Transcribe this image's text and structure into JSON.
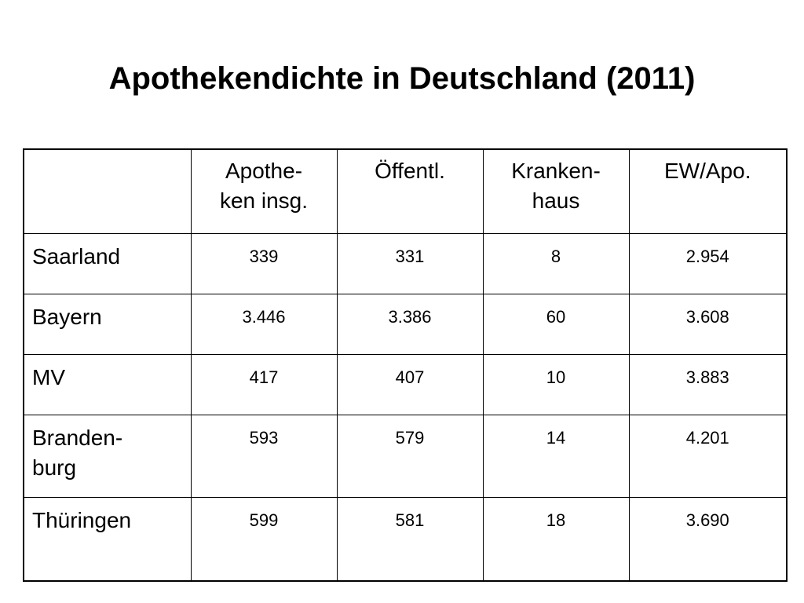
{
  "title": "Apothekendichte in Deutschland (2011)",
  "table": {
    "headers": [
      "",
      "Apothe-\nken insg.",
      "Öffentl.",
      "Kranken-\nhaus",
      "EW/Apo."
    ],
    "rows": [
      {
        "label": "Saarland",
        "values": [
          "339",
          "331",
          "8",
          "2.954"
        ]
      },
      {
        "label": "Bayern",
        "values": [
          "3.446",
          "3.386",
          "60",
          "3.608"
        ]
      },
      {
        "label": "MV",
        "values": [
          "417",
          "407",
          "10",
          "3.883"
        ]
      },
      {
        "label": "Branden-\nburg",
        "values": [
          "593",
          "579",
          "14",
          "4.201"
        ]
      },
      {
        "label": "Thüringen",
        "values": [
          "599",
          "581",
          "18",
          "3.690"
        ]
      }
    ]
  }
}
